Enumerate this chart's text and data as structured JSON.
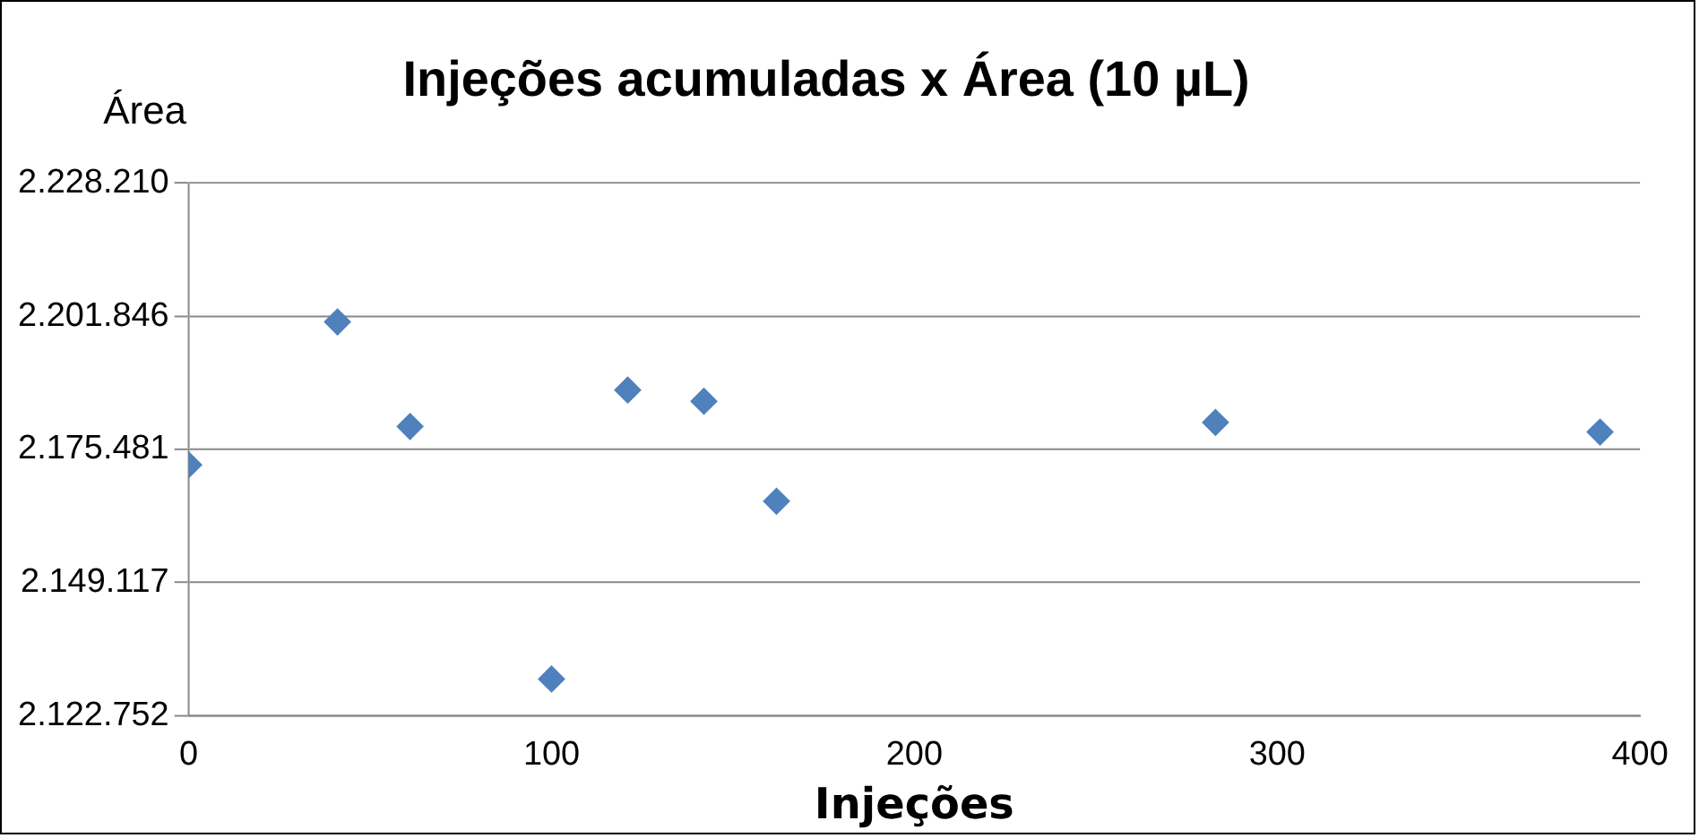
{
  "chart_data": {
    "type": "scatter",
    "title": "Injeções acumuladas x Área (10 µL)",
    "xlabel": "Injeções",
    "ylabel": "Área",
    "x": [
      0,
      41,
      61,
      100,
      121,
      142,
      162,
      283,
      389
    ],
    "series": [
      {
        "color": "#4f81bd",
        "values": [
          2172400,
          2200700,
          2180000,
          2130000,
          2187200,
          2185000,
          2165200,
          2180800,
          2178900
        ]
      }
    ],
    "xlim": [
      0,
      400
    ],
    "xticks": [
      0,
      100,
      200,
      300,
      400
    ],
    "ylim": [
      2122752,
      2228210
    ],
    "yticks": [
      {
        "value": 2122752,
        "label": "2.122.752"
      },
      {
        "value": 2149117,
        "label": "2.149.117"
      },
      {
        "value": 2175481,
        "label": "2.175.481"
      },
      {
        "value": 2201846,
        "label": "2.201.846"
      },
      {
        "value": 2228210,
        "label": "2.228.210"
      }
    ],
    "grid": "y",
    "legend": false,
    "marker": "diamond"
  }
}
